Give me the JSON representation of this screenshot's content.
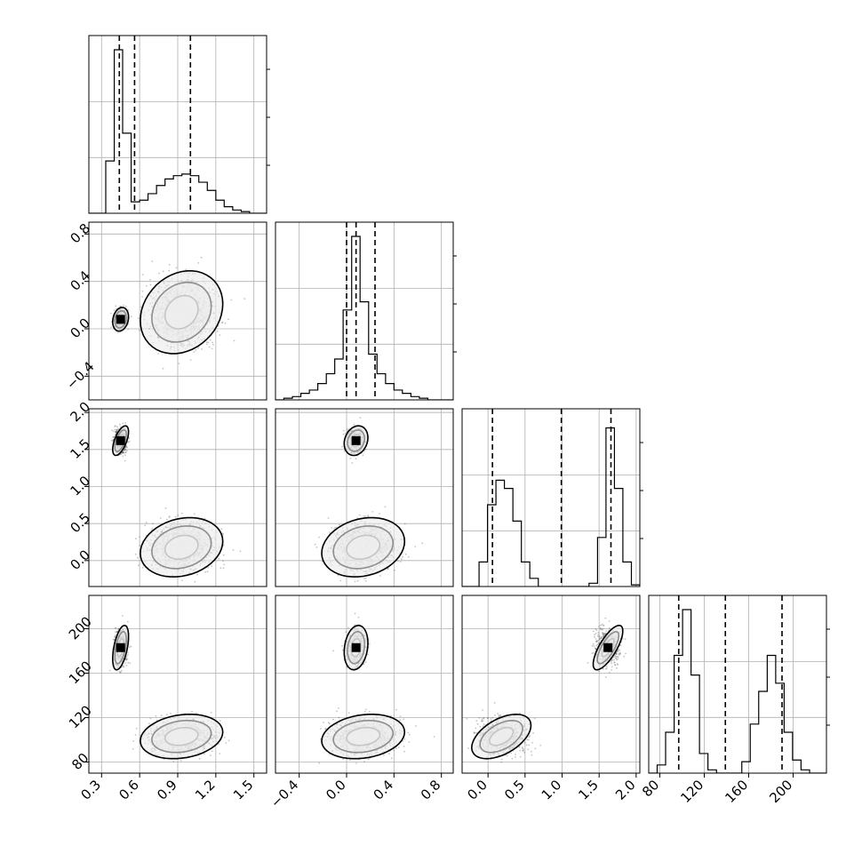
{
  "chart_data": {
    "type": "corner",
    "title": "",
    "parameters": [
      "",
      "",
      "",
      ""
    ],
    "ranges": [
      [
        0.2,
        1.6
      ],
      [
        -0.6,
        0.9
      ],
      [
        -0.35,
        2.05
      ],
      [
        70,
        230
      ]
    ],
    "ticks": [
      {
        "values": [
          0.3,
          0.6,
          0.9,
          1.2,
          1.5
        ],
        "labels": [
          "0.3",
          "0.6",
          "0.9",
          "1.2",
          "1.5"
        ]
      },
      {
        "values": [
          -0.4,
          0.0,
          0.4,
          0.8
        ],
        "labels": [
          "−0.4",
          "0.0",
          "0.4",
          "0.8"
        ]
      },
      {
        "values": [
          0.0,
          0.5,
          1.0,
          1.5,
          2.0
        ],
        "labels": [
          "0.0",
          "0.5",
          "1.0",
          "1.5",
          "2.0"
        ]
      },
      {
        "values": [
          80,
          120,
          160,
          200
        ],
        "labels": [
          "80",
          "120",
          "160",
          "200"
        ]
      }
    ],
    "quantiles": [
      [
        0.44,
        0.56,
        1.0
      ],
      [
        0.0,
        0.08,
        0.24
      ],
      [
        0.06,
        0.99,
        1.66
      ],
      [
        97,
        139,
        190
      ]
    ],
    "histograms": [
      {
        "bin_edges": [
          0.2,
          0.266,
          0.333,
          0.4,
          0.466,
          0.533,
          0.6,
          0.666,
          0.733,
          0.8,
          0.866,
          0.933,
          1.0,
          1.066,
          1.133,
          1.2,
          1.266,
          1.333,
          1.4,
          1.466,
          1.533,
          1.6
        ],
        "counts": [
          0,
          0,
          0.32,
          1.0,
          0.49,
          0.07,
          0.08,
          0.12,
          0.17,
          0.21,
          0.23,
          0.24,
          0.23,
          0.19,
          0.14,
          0.08,
          0.04,
          0.02,
          0.01,
          0,
          0
        ]
      },
      {
        "bin_edges": [
          -0.6,
          -0.529,
          -0.457,
          -0.386,
          -0.314,
          -0.243,
          -0.171,
          -0.1,
          -0.029,
          0.043,
          0.114,
          0.186,
          0.257,
          0.329,
          0.4,
          0.471,
          0.543,
          0.614,
          0.686,
          0.757,
          0.829,
          0.9
        ],
        "counts": [
          0,
          0.01,
          0.02,
          0.04,
          0.06,
          0.1,
          0.16,
          0.25,
          0.55,
          1.0,
          0.6,
          0.28,
          0.16,
          0.1,
          0.06,
          0.04,
          0.02,
          0.01,
          0,
          0,
          0
        ]
      },
      {
        "bin_edges": [
          -0.35,
          -0.236,
          -0.121,
          -0.007,
          0.107,
          0.221,
          0.336,
          0.45,
          0.564,
          0.679,
          0.793,
          0.907,
          1.021,
          1.136,
          1.25,
          1.364,
          1.479,
          1.593,
          1.707,
          1.821,
          1.936,
          2.05
        ],
        "counts": [
          0,
          0,
          0.15,
          0.5,
          0.65,
          0.6,
          0.4,
          0.15,
          0.05,
          0,
          0,
          0,
          0,
          0,
          0,
          0.02,
          0.3,
          0.97,
          0.6,
          0.15,
          0.01
        ]
      },
      {
        "bin_edges": [
          70,
          77.6,
          85.2,
          92.9,
          100.5,
          108.1,
          115.7,
          123.3,
          131,
          138.6,
          146.2,
          153.8,
          161.4,
          169,
          176.7,
          184.3,
          191.9,
          199.5,
          207.1,
          214.8,
          222.4,
          230
        ],
        "counts": [
          0,
          0.05,
          0.25,
          0.72,
          1.0,
          0.6,
          0.12,
          0.02,
          0,
          0,
          0,
          0.07,
          0.3,
          0.5,
          0.72,
          0.55,
          0.25,
          0.08,
          0.02,
          0,
          0
        ]
      }
    ],
    "modes": [
      {
        "weight": 0.4,
        "mean": [
          0.45,
          0.08,
          1.62,
          183
        ],
        "sd": [
          0.025,
          0.04,
          0.08,
          8
        ]
      },
      {
        "weight": 0.6,
        "mean": [
          0.93,
          0.14,
          0.18,
          103
        ],
        "sd": [
          0.13,
          0.14,
          0.16,
          8
        ]
      }
    ],
    "contour_levels": [
      1.0,
      1.8,
      2.5
    ]
  }
}
